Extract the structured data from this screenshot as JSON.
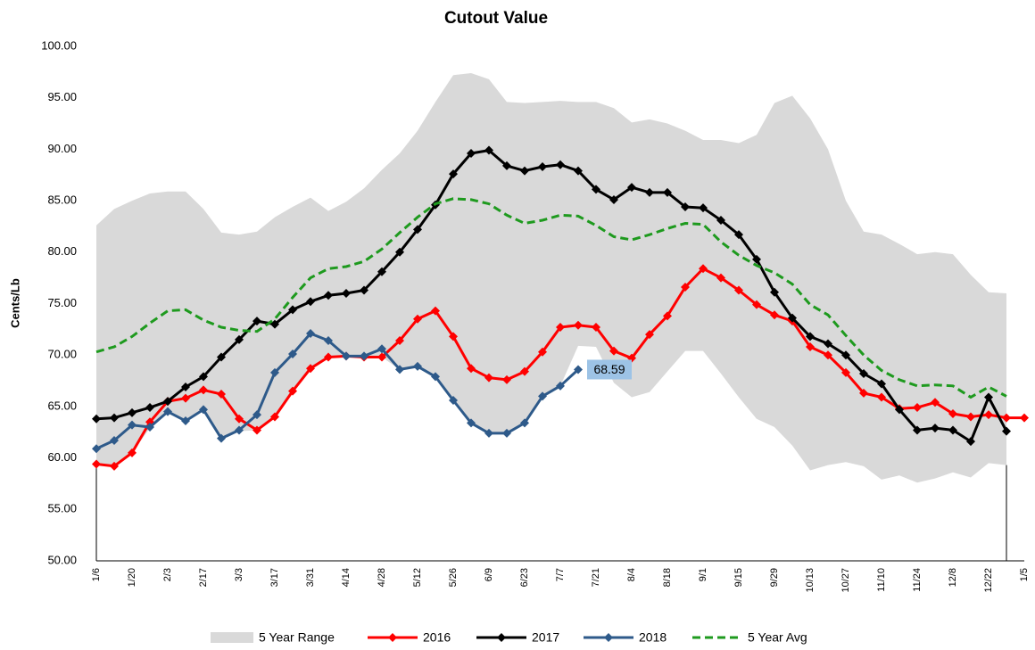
{
  "chart_data": {
    "type": "line",
    "title": "Cutout Value",
    "y_label": "Cents/Lb",
    "categories": [
      "1/6",
      null,
      "1/20",
      null,
      "2/3",
      null,
      "2/17",
      null,
      "3/3",
      null,
      "3/17",
      null,
      "3/31",
      null,
      "4/14",
      null,
      "4/28",
      null,
      "5/12",
      null,
      "5/26",
      null,
      "6/9",
      null,
      "6/23",
      null,
      "7/7",
      null,
      "7/21",
      null,
      "8/4",
      null,
      "8/18",
      null,
      "9/1",
      null,
      "9/15",
      null,
      "9/29",
      null,
      "10/13",
      null,
      "10/27",
      null,
      "11/10",
      null,
      "11/24",
      null,
      "12/8",
      null,
      "12/22",
      null,
      "1/5"
    ],
    "ylim": [
      50,
      100
    ],
    "yticks": [
      {
        "value": 50,
        "label": "50.00"
      },
      {
        "value": 55,
        "label": "55.00"
      },
      {
        "value": 60,
        "label": "60.00"
      },
      {
        "value": 65,
        "label": "65.00"
      },
      {
        "value": 70,
        "label": "70.00"
      },
      {
        "value": 75,
        "label": "75.00"
      },
      {
        "value": 80,
        "label": "80.00"
      },
      {
        "value": 85,
        "label": "85.00"
      },
      {
        "value": 90,
        "label": "90.00"
      },
      {
        "value": 95,
        "label": "95.00"
      },
      {
        "value": 100,
        "label": "100.00"
      }
    ],
    "series": [
      {
        "name": "5 Year Range",
        "kind": "range",
        "color": "#d9d9d9",
        "lower": [
          59.5,
          59.2,
          60.5,
          62.9,
          64.4,
          63.5,
          64.6,
          61.8,
          62.6,
          62.7,
          64.0,
          66.5,
          68.7,
          69.8,
          69.9,
          69.8,
          69.8,
          68.6,
          68.8,
          67.8,
          65.5,
          63.4,
          62.4,
          62.3,
          63.4,
          66.0,
          67.0,
          70.9,
          70.8,
          67.3,
          65.9,
          66.4,
          68.4,
          70.4,
          70.4,
          68.2,
          65.9,
          63.8,
          63.0,
          61.2,
          58.8,
          59.3,
          59.6,
          59.2,
          57.9,
          58.3,
          57.6,
          58.0,
          58.6,
          58.1,
          59.5,
          59.3,
          null
        ],
        "upper": [
          82.6,
          84.2,
          85.0,
          85.7,
          85.9,
          85.9,
          84.2,
          81.9,
          81.7,
          82.0,
          83.4,
          84.4,
          85.3,
          84.0,
          84.9,
          86.2,
          88.0,
          89.6,
          91.8,
          94.6,
          97.2,
          97.4,
          96.8,
          94.6,
          94.5,
          94.6,
          94.7,
          94.6,
          94.6,
          94.0,
          92.6,
          92.9,
          92.5,
          91.8,
          90.9,
          90.9,
          90.6,
          91.4,
          94.5,
          95.2,
          93.0,
          90.0,
          85.0,
          82.0,
          81.7,
          80.8,
          79.8,
          80.0,
          79.8,
          77.8,
          76.1,
          76.0,
          null
        ]
      },
      {
        "name": "2016",
        "kind": "marker-line",
        "color": "#ff0000",
        "values": [
          59.4,
          59.2,
          60.5,
          63.5,
          65.5,
          65.8,
          66.6,
          66.2,
          63.8,
          62.7,
          64.0,
          66.5,
          68.7,
          69.8,
          69.9,
          69.8,
          69.8,
          71.4,
          73.5,
          74.3,
          71.8,
          68.7,
          67.8,
          67.6,
          68.4,
          70.3,
          72.7,
          72.9,
          72.7,
          70.4,
          69.7,
          72.0,
          73.8,
          76.6,
          78.4,
          77.5,
          76.3,
          74.9,
          73.9,
          73.3,
          70.8,
          70.0,
          68.3,
          66.3,
          65.9,
          64.8,
          64.9,
          65.4,
          64.3,
          64.0,
          64.2,
          63.9,
          63.9
        ]
      },
      {
        "name": "2017",
        "kind": "marker-line",
        "color": "#000000",
        "values": [
          63.8,
          63.9,
          64.4,
          64.9,
          65.5,
          66.9,
          67.9,
          69.8,
          71.5,
          73.3,
          73.0,
          74.4,
          75.2,
          75.8,
          76.0,
          76.3,
          78.1,
          80.0,
          82.2,
          84.6,
          87.6,
          89.6,
          89.9,
          88.4,
          87.9,
          88.3,
          88.5,
          87.9,
          86.1,
          85.1,
          86.3,
          85.8,
          85.8,
          84.4,
          84.3,
          83.1,
          81.7,
          79.3,
          76.1,
          73.6,
          71.8,
          71.1,
          70.0,
          68.2,
          67.2,
          64.7,
          62.7,
          62.9,
          62.7,
          61.6,
          65.9,
          62.6,
          null
        ]
      },
      {
        "name": "2018",
        "kind": "marker-line",
        "color": "#2e5a8a",
        "label_last": true,
        "values": [
          60.9,
          61.7,
          63.2,
          63.0,
          64.5,
          63.6,
          64.7,
          61.9,
          62.7,
          64.2,
          68.3,
          70.1,
          72.1,
          71.4,
          69.9,
          69.9,
          70.6,
          68.6,
          68.9,
          67.9,
          65.6,
          63.4,
          62.4,
          62.4,
          63.4,
          66.0,
          67.0,
          68.59,
          null,
          null,
          null,
          null,
          null,
          null,
          null,
          null,
          null,
          null,
          null,
          null,
          null,
          null,
          null,
          null,
          null,
          null,
          null,
          null,
          null,
          null,
          null,
          null,
          null
        ]
      },
      {
        "name": "5 Year Avg",
        "kind": "dashed-line",
        "color": "#1e9a1e",
        "values": [
          70.3,
          70.8,
          71.8,
          73.1,
          74.3,
          74.4,
          73.4,
          72.7,
          72.4,
          72.3,
          73.5,
          75.6,
          77.5,
          78.4,
          78.6,
          79.1,
          80.3,
          81.9,
          83.4,
          84.7,
          85.2,
          85.1,
          84.7,
          83.6,
          82.8,
          83.1,
          83.6,
          83.5,
          82.6,
          81.5,
          81.2,
          81.7,
          82.3,
          82.8,
          82.7,
          81.0,
          79.7,
          78.7,
          78.0,
          76.9,
          74.9,
          73.9,
          71.9,
          70.0,
          68.5,
          67.6,
          67.0,
          67.1,
          67.0,
          65.9,
          66.9,
          66.0,
          null
        ]
      }
    ]
  }
}
